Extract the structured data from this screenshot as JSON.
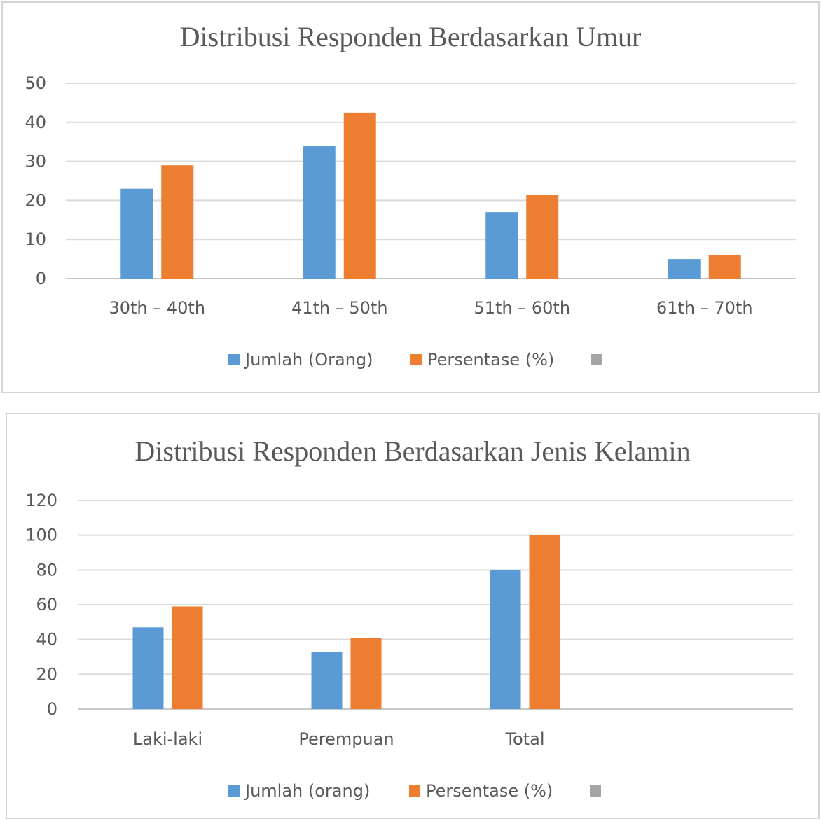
{
  "chart_data": [
    {
      "type": "bar",
      "title": "Distribusi Responden Berdasarkan Umur",
      "categories": [
        "30th – 40th",
        "41th – 50th",
        "51th – 60th",
        "61th – 70th"
      ],
      "series": [
        {
          "name": "Jumlah (Orang)",
          "values": [
            23,
            34,
            17,
            5
          ],
          "color": "#5b9bd5"
        },
        {
          "name": "Persentase (%)",
          "values": [
            29,
            42.5,
            21.5,
            6
          ],
          "color": "#ed7d31"
        }
      ],
      "extra_legend_color": "#a5a5a5",
      "ylim": [
        0,
        50
      ],
      "yticks": [
        0,
        10,
        20,
        30,
        40,
        50
      ],
      "grid": true,
      "legend_position": "bottom"
    },
    {
      "type": "bar",
      "title": "Distribusi Responden Berdasarkan Jenis Kelamin",
      "categories": [
        "Laki-laki",
        "Perempuan",
        "Total",
        ""
      ],
      "series": [
        {
          "name": "Jumlah (orang)",
          "values": [
            47,
            33,
            80,
            null
          ],
          "color": "#5b9bd5"
        },
        {
          "name": "Persentase (%)",
          "values": [
            59,
            41,
            100,
            null
          ],
          "color": "#ed7d31"
        }
      ],
      "extra_legend_color": "#a5a5a5",
      "ylim": [
        0,
        120
      ],
      "yticks": [
        0,
        20,
        40,
        60,
        80,
        100,
        120
      ],
      "grid": true,
      "legend_position": "bottom"
    }
  ]
}
